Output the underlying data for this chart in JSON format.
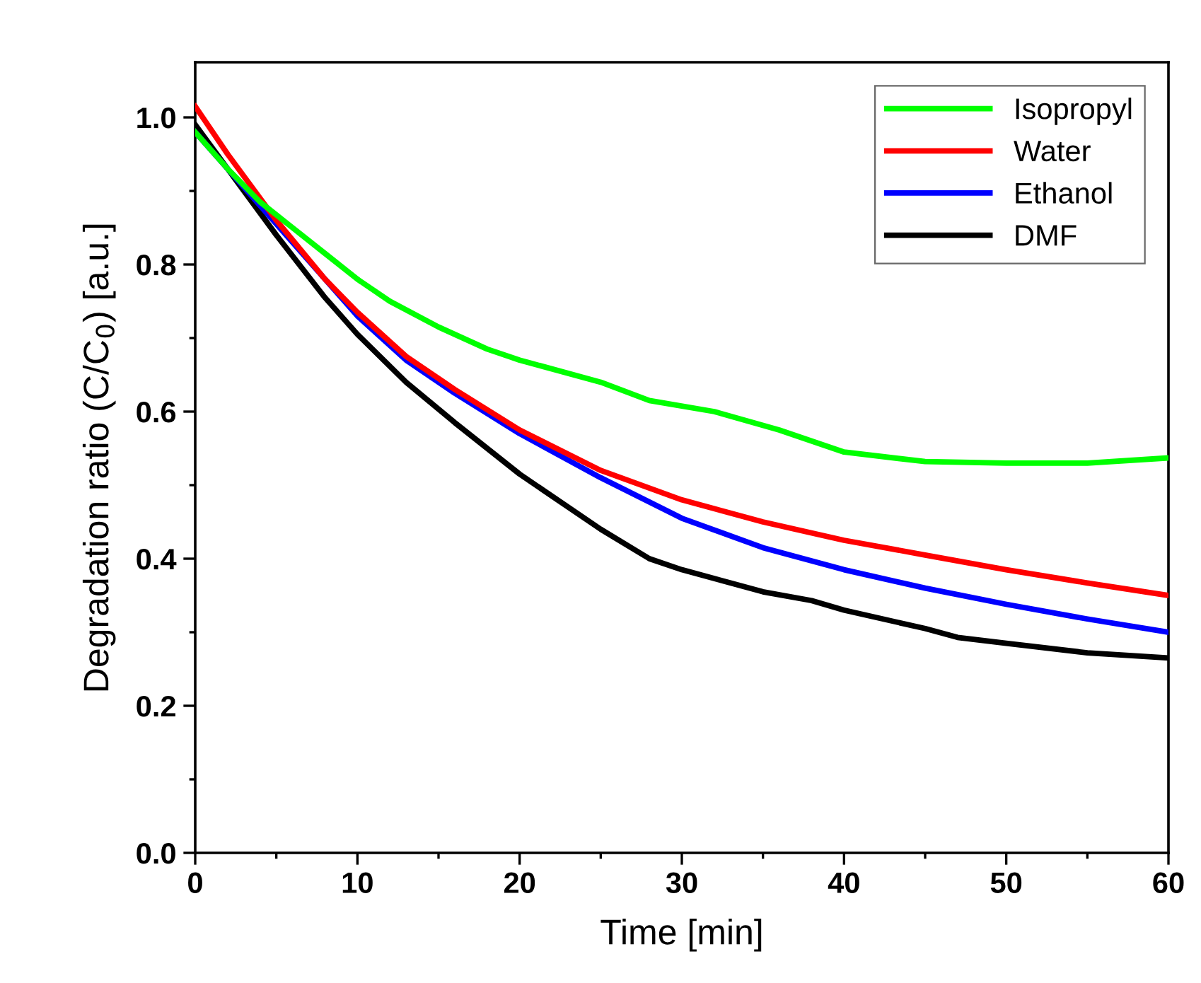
{
  "chart_data": {
    "type": "line",
    "xlabel": "Time [min]",
    "ylabel": "Degradation ratio (C/C$_{0}$) [a.u.]",
    "xlim": [
      0,
      60
    ],
    "xticks": [
      0,
      10,
      20,
      30,
      40,
      50,
      60
    ],
    "ylim": [
      0,
      1.075
    ],
    "yticks": [
      {
        "value": 0,
        "label": "0.0"
      },
      0.2,
      0.4,
      0.6,
      0.8,
      {
        "value": 1.0,
        "label": "1.0"
      }
    ],
    "grid": false,
    "legend": "top right",
    "marker": "none",
    "line_style": "solid",
    "series": [
      {
        "name": "Isopropyl",
        "color": "#00ff00",
        "x": [
          0,
          2,
          4,
          6,
          8,
          10,
          12,
          15,
          18,
          20,
          25,
          28,
          32,
          36,
          40,
          45,
          50,
          55,
          60
        ],
        "values": [
          0.98,
          0.93,
          0.885,
          0.85,
          0.815,
          0.78,
          0.75,
          0.715,
          0.685,
          0.67,
          0.64,
          0.615,
          0.6,
          0.575,
          0.545,
          0.532,
          0.53,
          0.53,
          0.537
        ]
      },
      {
        "name": "Water",
        "color": "#ff0000",
        "x": [
          0,
          2,
          5,
          8,
          10,
          13,
          16,
          20,
          25,
          30,
          35,
          40,
          45,
          50,
          55,
          60
        ],
        "values": [
          1.015,
          0.95,
          0.86,
          0.78,
          0.735,
          0.675,
          0.63,
          0.575,
          0.52,
          0.48,
          0.45,
          0.425,
          0.405,
          0.385,
          0.367,
          0.35
        ]
      },
      {
        "name": "Ethanol",
        "color": "#0000ff",
        "x": [
          0,
          2,
          5,
          8,
          10,
          13,
          16,
          20,
          25,
          30,
          35,
          40,
          45,
          50,
          55,
          60
        ],
        "values": [
          0.98,
          0.93,
          0.855,
          0.78,
          0.73,
          0.67,
          0.625,
          0.57,
          0.51,
          0.455,
          0.415,
          0.385,
          0.36,
          0.338,
          0.318,
          0.3
        ]
      },
      {
        "name": "DMF",
        "color": "#000000",
        "x": [
          0,
          2,
          5,
          8,
          10,
          13,
          16,
          20,
          25,
          28,
          30,
          35,
          38,
          40,
          45,
          47,
          50,
          55,
          60
        ],
        "values": [
          0.99,
          0.93,
          0.84,
          0.755,
          0.705,
          0.64,
          0.585,
          0.515,
          0.44,
          0.4,
          0.385,
          0.355,
          0.343,
          0.33,
          0.305,
          0.293,
          0.285,
          0.272,
          0.265
        ]
      }
    ]
  }
}
